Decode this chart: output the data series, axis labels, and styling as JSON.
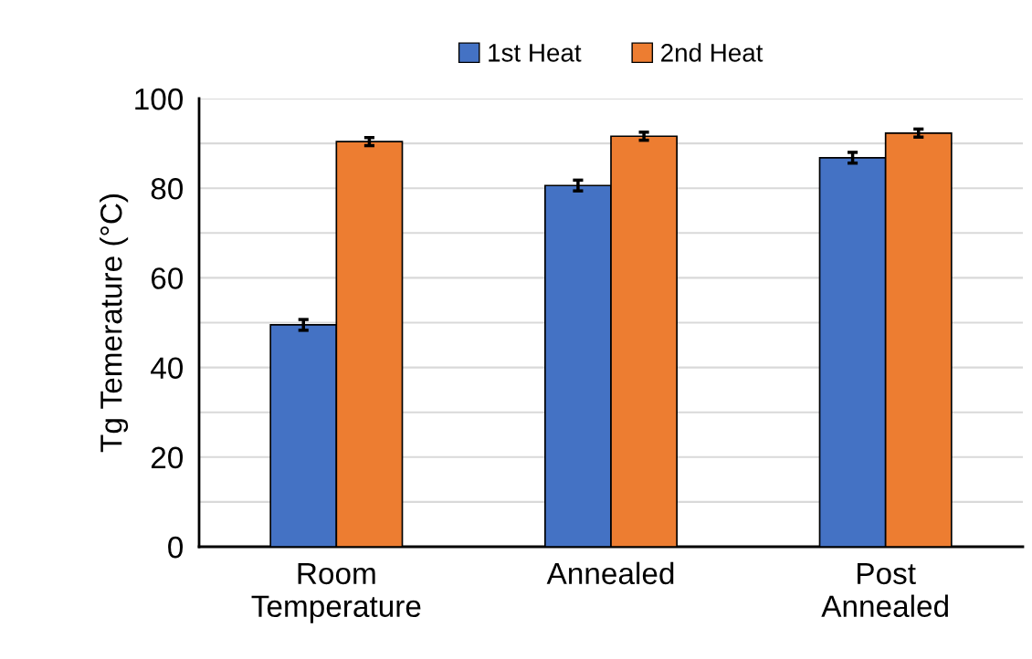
{
  "chart_data": {
    "type": "bar",
    "ylabel": "Tg Temerature (°C)",
    "categories": [
      "Room\nTemperature",
      "Annealed",
      "Post\nAnnealed"
    ],
    "series": [
      {
        "name": "1st Heat",
        "color": "#4472c4",
        "values": [
          49.5,
          80.6,
          86.8
        ],
        "errors": [
          1.2,
          1.2,
          1.2
        ]
      },
      {
        "name": "2nd Heat",
        "color": "#ed7d31",
        "values": [
          90.4,
          91.6,
          92.3
        ],
        "errors": [
          0.9,
          0.9,
          0.9
        ]
      }
    ],
    "ylim": [
      0,
      100
    ],
    "yticks": [
      0,
      {
        "value": 10,
        "label": null
      },
      20,
      {
        "value": 30,
        "label": null
      },
      40,
      {
        "value": 50,
        "label": null
      },
      60,
      {
        "value": 70,
        "label": null
      },
      80,
      {
        "value": 90,
        "label": null
      },
      100
    ],
    "grid": "y",
    "legend": "top"
  }
}
